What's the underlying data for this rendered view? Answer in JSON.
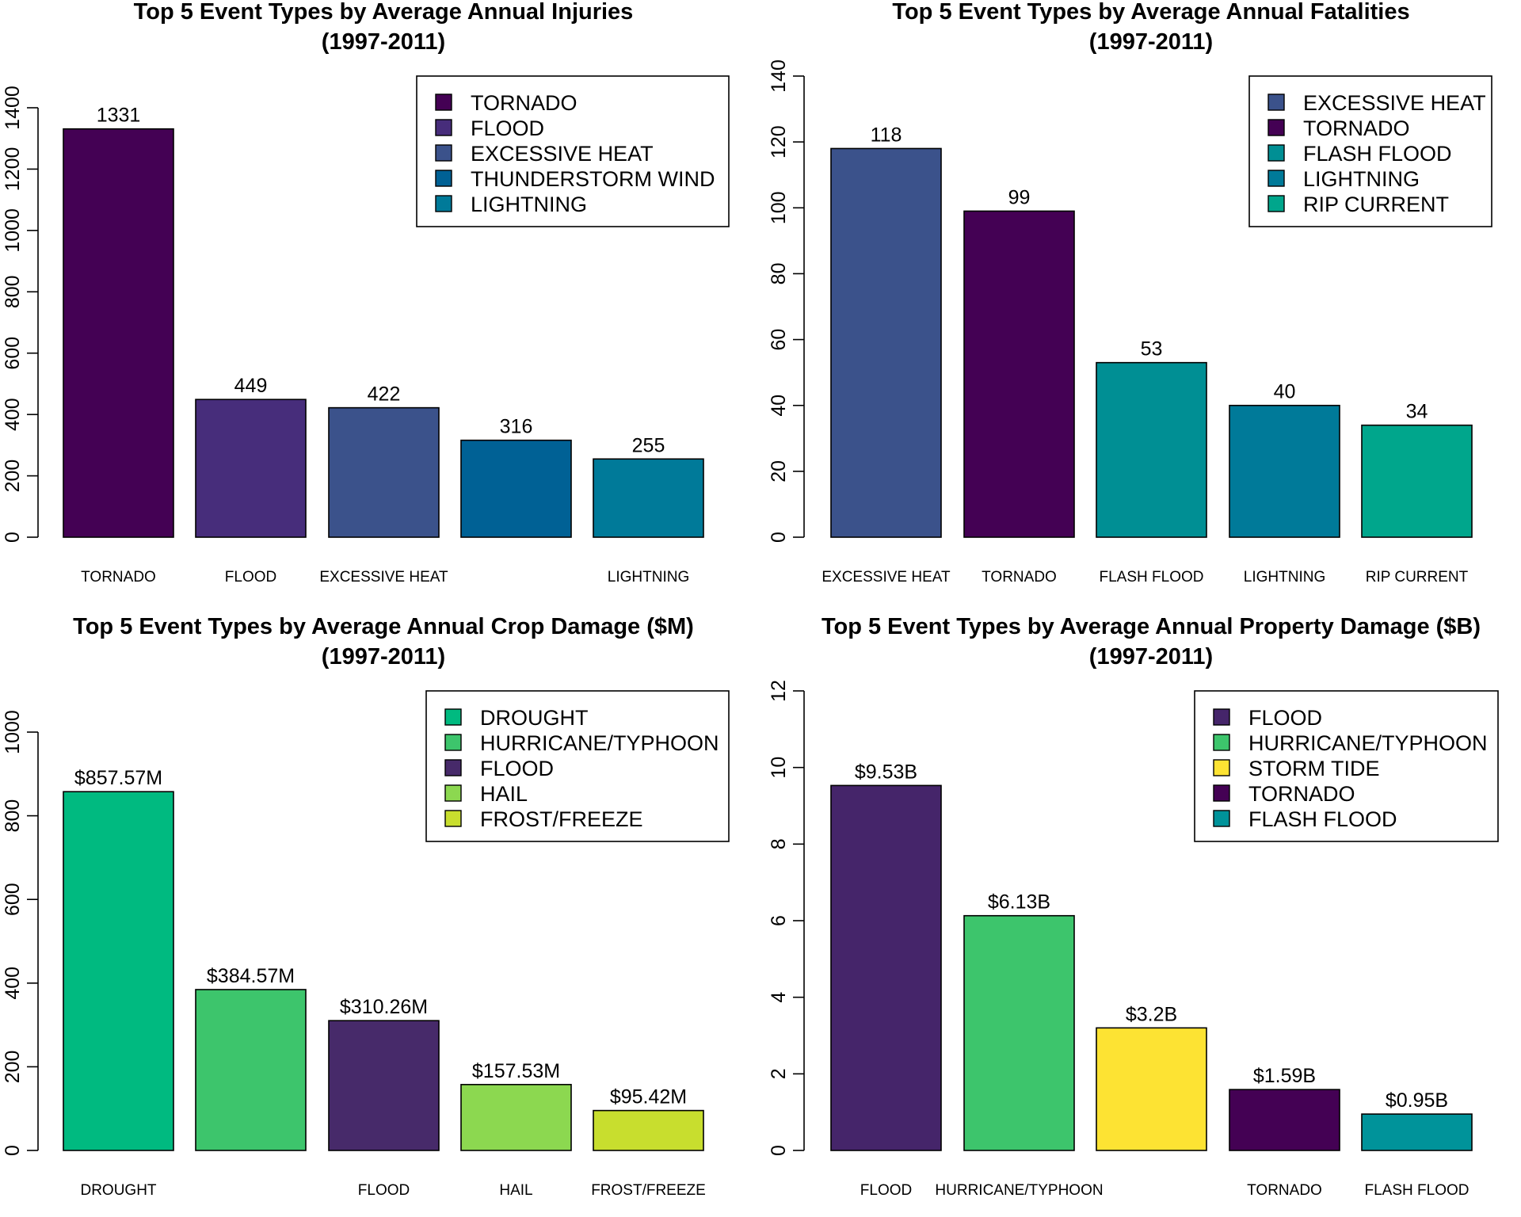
{
  "chart_data": [
    {
      "type": "bar",
      "title": "Top 5 Event Types by Average Annual Injuries",
      "subtitle": "(1997-2011)",
      "categories": [
        "TORNADO",
        "FLOOD",
        "EXCESSIVE HEAT",
        "THUNDERSTORM WIND",
        "LIGHTNING"
      ],
      "xtick_labels": [
        "TORNADO",
        "FLOOD",
        "EXCESSIVE HEAT",
        "",
        "LIGHTNING"
      ],
      "values": [
        1331,
        449,
        422,
        316,
        255
      ],
      "value_labels": [
        "1331",
        "449",
        "422",
        "316",
        "255"
      ],
      "colors": [
        "#440154",
        "#472D7B",
        "#3B528B",
        "#006195",
        "#007A99"
      ],
      "ylim": [
        0,
        1400
      ],
      "yticks": [
        0,
        200,
        400,
        600,
        800,
        1000,
        1200,
        1400
      ],
      "ytick_labels": [
        "0",
        "200",
        "400",
        "600",
        "800",
        "1000",
        "1200",
        "1400"
      ],
      "legend": [
        "TORNADO",
        "FLOOD",
        "EXCESSIVE HEAT",
        "THUNDERSTORM WIND",
        "LIGHTNING"
      ],
      "legend_position": "top-right",
      "xlabel": "",
      "ylabel": ""
    },
    {
      "type": "bar",
      "title": "Top 5 Event Types by Average Annual Fatalities",
      "subtitle": "(1997-2011)",
      "categories": [
        "EXCESSIVE HEAT",
        "TORNADO",
        "FLASH FLOOD",
        "LIGHTNING",
        "RIP CURRENT"
      ],
      "xtick_labels": [
        "EXCESSIVE HEAT",
        "TORNADO",
        "FLASH FLOOD",
        "LIGHTNING",
        "RIP CURRENT"
      ],
      "values": [
        118,
        99,
        53,
        40,
        34
      ],
      "value_labels": [
        "118",
        "99",
        "53",
        "40",
        "34"
      ],
      "colors": [
        "#3B528B",
        "#440154",
        "#008F94",
        "#007A99",
        "#00A68C"
      ],
      "ylim": [
        0,
        140
      ],
      "yticks": [
        0,
        20,
        40,
        60,
        80,
        100,
        120,
        140
      ],
      "ytick_labels": [
        "0",
        "20",
        "40",
        "60",
        "80",
        "100",
        "120",
        "140"
      ],
      "legend": [
        "EXCESSIVE HEAT",
        "TORNADO",
        "FLASH FLOOD",
        "LIGHTNING",
        "RIP CURRENT"
      ],
      "legend_position": "top-right",
      "xlabel": "",
      "ylabel": ""
    },
    {
      "type": "bar",
      "title": "Top 5 Event Types by Average Annual Crop Damage ($M)",
      "subtitle": "(1997-2011)",
      "categories": [
        "DROUGHT",
        "HURRICANE/TYPHOON",
        "FLOOD",
        "HAIL",
        "FROST/FREEZE"
      ],
      "xtick_labels": [
        "DROUGHT",
        "",
        "FLOOD",
        "HAIL",
        "FROST/FREEZE"
      ],
      "values": [
        857.57,
        384.57,
        310.26,
        157.53,
        95.42
      ],
      "value_labels": [
        "$857.57M",
        "$384.57M",
        "$310.26M",
        "$157.53M",
        "$95.42M"
      ],
      "colors": [
        "#00BA80",
        "#3DC56C",
        "#472A6A",
        "#8CD850",
        "#C8DE2E"
      ],
      "ylim": [
        0,
        1000
      ],
      "yticks": [
        0,
        200,
        400,
        600,
        800,
        1000
      ],
      "ytick_labels": [
        "0",
        "200",
        "400",
        "600",
        "800",
        "1000"
      ],
      "legend": [
        "DROUGHT",
        "HURRICANE/TYPHOON",
        "FLOOD",
        "HAIL",
        "FROST/FREEZE"
      ],
      "legend_position": "top-right",
      "xlabel": "",
      "ylabel": ""
    },
    {
      "type": "bar",
      "title": "Top 5 Event Types by Average Annual Property Damage ($B)",
      "subtitle": "(1997-2011)",
      "categories": [
        "FLOOD",
        "HURRICANE/TYPHOON",
        "STORM TIDE",
        "TORNADO",
        "FLASH FLOOD"
      ],
      "xtick_labels": [
        "FLOOD",
        "HURRICANE/TYPHOON",
        "",
        "TORNADO",
        "FLASH FLOOD"
      ],
      "values": [
        9.53,
        6.13,
        3.2,
        1.59,
        0.95
      ],
      "value_labels": [
        "$9.53B",
        "$6.13B",
        "$3.2B",
        "$1.59B",
        "$0.95B"
      ],
      "colors": [
        "#45256A",
        "#3DC56C",
        "#FDE333",
        "#440154",
        "#00939A"
      ],
      "ylim": [
        0,
        12
      ],
      "yticks": [
        0,
        2,
        4,
        6,
        8,
        10,
        12
      ],
      "ytick_labels": [
        "0",
        "2",
        "4",
        "6",
        "8",
        "10",
        "12"
      ],
      "legend": [
        "FLOOD",
        "HURRICANE/TYPHOON",
        "STORM TIDE",
        "TORNADO",
        "FLASH FLOOD"
      ],
      "legend_position": "top-right",
      "xlabel": "",
      "ylabel": ""
    }
  ]
}
